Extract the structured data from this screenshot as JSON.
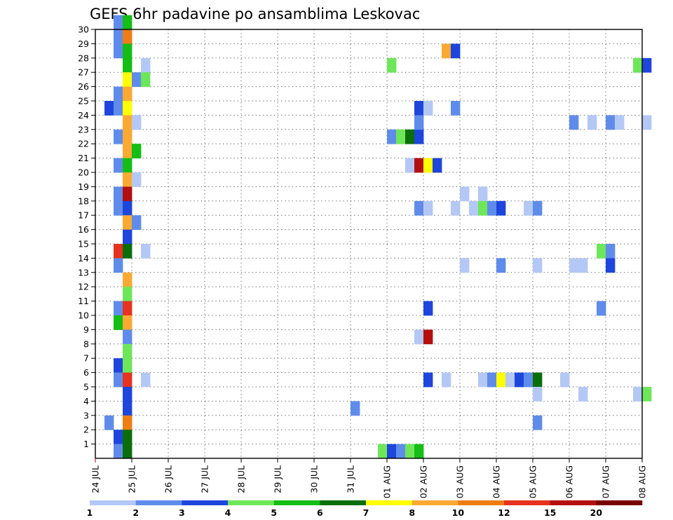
{
  "chart_data": {
    "type": "heatmap",
    "title": "GEFS 6hr padavine po ansamblima Leskovac",
    "x_ticks": [
      "24 JUL",
      "25 JUL",
      "26 JUL",
      "27 JUL",
      "28 JUL",
      "29 JUL",
      "30 JUL",
      "31 JUL",
      "01 AUG",
      "02 AUG",
      "03 AUG",
      "04 AUG",
      "05 AUG",
      "06 AUG",
      "07 AUG",
      "08 AUG"
    ],
    "y_ticks": [
      "1",
      "2",
      "3",
      "4",
      "5",
      "6",
      "7",
      "8",
      "9",
      "10",
      "11",
      "12",
      "13",
      "14",
      "15",
      "16",
      "17",
      "18",
      "19",
      "20",
      "21",
      "22",
      "23",
      "24",
      "25",
      "26",
      "27",
      "28",
      "29",
      "30"
    ],
    "y_range": [
      0,
      30
    ],
    "grid": true,
    "colorbar": {
      "labels": [
        "1",
        "2",
        "3",
        "4",
        "5",
        "6",
        "7",
        "8",
        "10",
        "12",
        "15",
        "20"
      ],
      "colors": [
        "#b4c8f5",
        "#5f8ceb",
        "#1e46dc",
        "#6ee65a",
        "#14be14",
        "#0a6e0a",
        "#ffff00",
        "#faaa32",
        "#f07d14",
        "#e6321e",
        "#b40f0f",
        "#780000"
      ]
    },
    "cells": [
      [
        0.5,
        30,
        1
      ],
      [
        0.5,
        29,
        1
      ],
      [
        0.5,
        28,
        1
      ],
      [
        0.5,
        25,
        1
      ],
      [
        0.25,
        24,
        2
      ],
      [
        0.5,
        24,
        1
      ],
      [
        0.5,
        22,
        1
      ],
      [
        0.5,
        20,
        1
      ],
      [
        0.5,
        18,
        1
      ],
      [
        0.5,
        17,
        1
      ],
      [
        0.5,
        14,
        9
      ],
      [
        0.5,
        13,
        1
      ],
      [
        0.5,
        10,
        1
      ],
      [
        0.5,
        9,
        4
      ],
      [
        0.5,
        6,
        2
      ],
      [
        0.5,
        5,
        1
      ],
      [
        0.25,
        2,
        1
      ],
      [
        0.5,
        1,
        2
      ],
      [
        0.5,
        0,
        1
      ],
      [
        0.75,
        30,
        4
      ],
      [
        0.75,
        29,
        8
      ],
      [
        0.75,
        28,
        4
      ],
      [
        0.75,
        27,
        4
      ],
      [
        0.75,
        26,
        6
      ],
      [
        0.75,
        25,
        7
      ],
      [
        0.75,
        24,
        6
      ],
      [
        0.75,
        23,
        7
      ],
      [
        0.75,
        22,
        7
      ],
      [
        0.75,
        21,
        7
      ],
      [
        0.75,
        20,
        4
      ],
      [
        0.75,
        19,
        7
      ],
      [
        0.75,
        18,
        10
      ],
      [
        0.75,
        17,
        2
      ],
      [
        0.75,
        16,
        7
      ],
      [
        0.75,
        15,
        2
      ],
      [
        0.75,
        14,
        5
      ],
      [
        0.75,
        12,
        7
      ],
      [
        0.75,
        11,
        3
      ],
      [
        0.75,
        10,
        9
      ],
      [
        0.75,
        9,
        7
      ],
      [
        0.75,
        8,
        1
      ],
      [
        0.75,
        7,
        3
      ],
      [
        0.75,
        6,
        3
      ],
      [
        0.75,
        5,
        9
      ],
      [
        0.75,
        4,
        2
      ],
      [
        0.75,
        3,
        2
      ],
      [
        0.75,
        2,
        8
      ],
      [
        0.75,
        1,
        5
      ],
      [
        0.75,
        0,
        5
      ],
      [
        1.0,
        26,
        1
      ],
      [
        1.0,
        21,
        4
      ],
      [
        1.0,
        16,
        1
      ],
      [
        1.25,
        27,
        0
      ],
      [
        1.25,
        26,
        3
      ],
      [
        1.0,
        23,
        0
      ],
      [
        1.0,
        19,
        0
      ],
      [
        1.25,
        14,
        0
      ],
      [
        1.25,
        5,
        0
      ],
      [
        7.0,
        3,
        1
      ],
      [
        7.75,
        0,
        3
      ],
      [
        8.0,
        0,
        2
      ],
      [
        8.25,
        0,
        1
      ],
      [
        8.5,
        0,
        3
      ],
      [
        8.75,
        0,
        4
      ],
      [
        8.0,
        27,
        3
      ],
      [
        8.0,
        22,
        1
      ],
      [
        8.25,
        22,
        3
      ],
      [
        8.5,
        22,
        5
      ],
      [
        8.75,
        22,
        2
      ],
      [
        8.75,
        24,
        2
      ],
      [
        8.75,
        23,
        1
      ],
      [
        9.0,
        24,
        0
      ],
      [
        8.5,
        20,
        0
      ],
      [
        8.75,
        20,
        10
      ],
      [
        9.0,
        20,
        6
      ],
      [
        9.25,
        20,
        2
      ],
      [
        8.75,
        17,
        1
      ],
      [
        9.0,
        17,
        0
      ],
      [
        8.75,
        8,
        0
      ],
      [
        9.0,
        8,
        10
      ],
      [
        9.0,
        10,
        2
      ],
      [
        9.0,
        5,
        2
      ],
      [
        9.5,
        5,
        0
      ],
      [
        9.5,
        28,
        7
      ],
      [
        9.75,
        28,
        2
      ],
      [
        9.75,
        24,
        1
      ],
      [
        10.0,
        18,
        0
      ],
      [
        10.5,
        18,
        0
      ],
      [
        9.75,
        17,
        0
      ],
      [
        10.25,
        17,
        0
      ],
      [
        10.5,
        17,
        3
      ],
      [
        10.75,
        17,
        1
      ],
      [
        11.0,
        17,
        2
      ],
      [
        10.0,
        13,
        0
      ],
      [
        11.0,
        13,
        1
      ],
      [
        12.0,
        13,
        0
      ],
      [
        10.5,
        5,
        0
      ],
      [
        10.75,
        5,
        1
      ],
      [
        11.0,
        5,
        6
      ],
      [
        11.25,
        5,
        0
      ],
      [
        11.5,
        5,
        2
      ],
      [
        11.75,
        5,
        1
      ],
      [
        12.0,
        5,
        5
      ],
      [
        11.75,
        17,
        0
      ],
      [
        12.0,
        17,
        1
      ],
      [
        12.0,
        4,
        0
      ],
      [
        12.0,
        2,
        1
      ],
      [
        12.75,
        5,
        0
      ],
      [
        13.25,
        4,
        0
      ],
      [
        13.0,
        23,
        1
      ],
      [
        13.5,
        23,
        0
      ],
      [
        14.0,
        23,
        1
      ],
      [
        14.25,
        23,
        0
      ],
      [
        15.0,
        23,
        0
      ],
      [
        13.0,
        13,
        0
      ],
      [
        13.25,
        13,
        0
      ],
      [
        13.75,
        14,
        3
      ],
      [
        14.0,
        14,
        1
      ],
      [
        14.0,
        13,
        2
      ],
      [
        13.75,
        10,
        1
      ],
      [
        14.75,
        27,
        3
      ],
      [
        15.0,
        27,
        2
      ],
      [
        14.75,
        4,
        0
      ],
      [
        15.0,
        4,
        3
      ]
    ]
  }
}
